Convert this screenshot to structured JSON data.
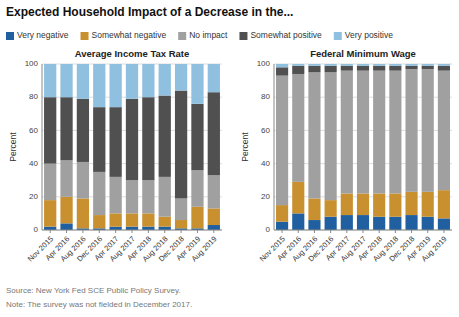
{
  "chart_data": [
    {
      "type": "bar",
      "stacked": true,
      "grid": true,
      "title": "Expected Household Impact of a Decrease in the...",
      "subtitle": "Average Income Tax Rate",
      "annotations": [
        "Source: New York Fed SCE Public Policy Survey.",
        "Note: The survey was not fielded in December 2017."
      ],
      "ylabel": "Percent",
      "categories": [
        "Nov 2015",
        "Apr 2016",
        "Aug 2016",
        "Dec 2016",
        "Apr 2017",
        "Aug 2017",
        "Apr 2018",
        "Aug 2018",
        "Dec 2018",
        "Apr 2019",
        "Aug 2019"
      ],
      "ylim": [
        0,
        100
      ],
      "yticks": [
        0,
        20,
        40,
        60,
        80,
        100
      ],
      "series": [
        {
          "name": "Very negative",
          "color": "#2060A0",
          "values": [
            2,
            4,
            1,
            1,
            2,
            2,
            2,
            2,
            1,
            1,
            3
          ]
        },
        {
          "name": "Somewhat negative",
          "color": "#C99030",
          "values": [
            16,
            16,
            18,
            8,
            8,
            8,
            8,
            6,
            5,
            13,
            10
          ]
        },
        {
          "name": "No impact",
          "color": "#A0A0A0",
          "values": [
            22,
            22,
            22,
            26,
            22,
            20,
            20,
            24,
            13,
            22,
            20
          ]
        },
        {
          "name": "Somewhat positive",
          "color": "#505050",
          "values": [
            40,
            38,
            38,
            39,
            42,
            49,
            50,
            49,
            65,
            40,
            50
          ]
        },
        {
          "name": "Very positive",
          "color": "#90C0E0",
          "values": [
            20,
            20,
            21,
            26,
            26,
            21,
            20,
            19,
            16,
            24,
            17
          ]
        }
      ]
    },
    {
      "type": "bar",
      "stacked": true,
      "grid": true,
      "subtitle": "Federal Minimum Wage",
      "ylabel": "Percent",
      "categories": [
        "Nov 2015",
        "Apr 2016",
        "Aug 2016",
        "Dec 2016",
        "Apr 2017",
        "Aug 2017",
        "Apr 2018",
        "Aug 2018",
        "Dec 2018",
        "Apr 2019",
        "Aug 2019"
      ],
      "ylim": [
        0,
        100
      ],
      "yticks": [
        0,
        20,
        40,
        60,
        80,
        100
      ],
      "series": [
        {
          "color": "#2060A0",
          "values": [
            5,
            10,
            6,
            8,
            9,
            9,
            8,
            8,
            9,
            8,
            7
          ]
        },
        {
          "color": "#C99030",
          "values": [
            10,
            19,
            13,
            10,
            13,
            13,
            14,
            14,
            14,
            15,
            17
          ]
        },
        {
          "color": "#A0A0A0",
          "values": [
            78,
            65,
            76,
            77,
            74,
            74,
            74,
            74,
            74,
            74,
            72
          ]
        },
        {
          "color": "#505050",
          "values": [
            5,
            5,
            4,
            4,
            3,
            3,
            3,
            3,
            2,
            2,
            3
          ]
        },
        {
          "color": "#90C0E0",
          "values": [
            2,
            1,
            1,
            1,
            1,
            1,
            1,
            1,
            1,
            1,
            1
          ]
        }
      ]
    }
  ]
}
